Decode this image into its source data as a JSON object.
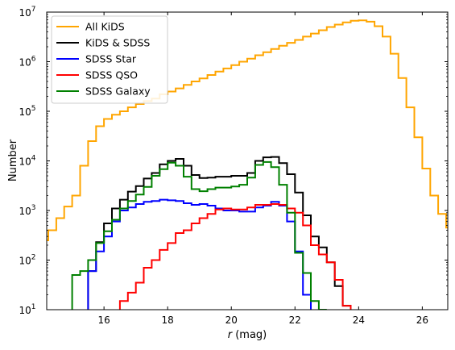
{
  "chart_data": {
    "type": "step",
    "xlabel_italic": "r",
    "xlabel_rest": " (mag)",
    "ylabel": "Number",
    "xlim": [
      14.2,
      26.8
    ],
    "ylim": [
      10,
      10000000
    ],
    "yscale": "log",
    "bin_width": 0.25,
    "grid": false,
    "legend_position": "upper left",
    "x_ticks": [
      16,
      18,
      20,
      22,
      24,
      26
    ],
    "x_tick_labels": [
      "16",
      "18",
      "20",
      "22",
      "24",
      "26"
    ],
    "y_ticks": [
      {
        "value": 10,
        "base": "10",
        "exp": "1"
      },
      {
        "value": 100,
        "base": "10",
        "exp": "2"
      },
      {
        "value": 1000,
        "base": "10",
        "exp": "3"
      },
      {
        "value": 10000,
        "base": "10",
        "exp": "4"
      },
      {
        "value": 100000,
        "base": "10",
        "exp": "5"
      },
      {
        "value": 1000000,
        "base": "10",
        "exp": "6"
      },
      {
        "value": 10000000,
        "base": "10",
        "exp": "7"
      }
    ],
    "series": [
      {
        "name": "All KiDS",
        "color": "#ffa500",
        "start": 14.0,
        "values": [
          250,
          400,
          700,
          1200,
          2000,
          8000,
          25000,
          50000,
          70000,
          85000,
          100000,
          120000,
          140000,
          160000,
          180000,
          220000,
          250000,
          290000,
          340000,
          400000,
          460000,
          540000,
          630000,
          730000,
          850000,
          1000000,
          1150000,
          1350000,
          1550000,
          1800000,
          2100000,
          2400000,
          2750000,
          3200000,
          3700000,
          4300000,
          5000000,
          5600000,
          6200000,
          6700000,
          6800000,
          6400000,
          5200000,
          3200000,
          1450000,
          470000,
          120000,
          30000,
          7000,
          2000,
          850,
          450,
          60,
          15
        ]
      },
      {
        "name": "KiDS & SDSS",
        "color": "#000000",
        "start": 15.25,
        "values": [
          8,
          60,
          230,
          550,
          1100,
          1650,
          2400,
          3100,
          4400,
          5700,
          8500,
          10000,
          11000,
          8000,
          5200,
          4500,
          4600,
          4800,
          4800,
          5000,
          5000,
          5700,
          10000,
          11800,
          12000,
          9000,
          5400,
          2300,
          800,
          300,
          180,
          90,
          30,
          12,
          8
        ]
      },
      {
        "name": "SDSS Star",
        "color": "#0000ff",
        "start": 15.25,
        "values": [
          8,
          60,
          150,
          300,
          600,
          1000,
          1150,
          1350,
          1500,
          1550,
          1650,
          1600,
          1550,
          1400,
          1300,
          1350,
          1250,
          1100,
          1000,
          1000,
          950,
          950,
          1150,
          1250,
          1500,
          1250,
          600,
          150,
          20,
          8
        ]
      },
      {
        "name": "SDSS QSO",
        "color": "#ff0000",
        "start": 16.25,
        "values": [
          8,
          15,
          22,
          35,
          70,
          100,
          160,
          220,
          350,
          400,
          550,
          700,
          850,
          1050,
          1100,
          1050,
          1050,
          1150,
          1300,
          1300,
          1350,
          1300,
          1100,
          900,
          500,
          200,
          130,
          90,
          40,
          12,
          8
        ]
      },
      {
        "name": "SDSS Galaxy",
        "color": "#008000",
        "start": 14.75,
        "values": [
          8,
          50,
          60,
          100,
          220,
          380,
          650,
          1100,
          1550,
          2100,
          3000,
          5000,
          6800,
          9200,
          8000,
          4800,
          2700,
          2450,
          2700,
          2900,
          2900,
          3050,
          3300,
          4600,
          8300,
          9500,
          7500,
          3300,
          900,
          140,
          55,
          15,
          10
        ]
      }
    ]
  }
}
